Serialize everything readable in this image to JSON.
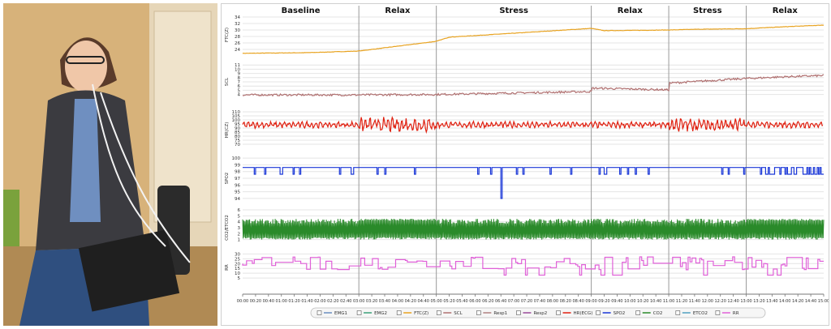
{
  "chart_data": {
    "type": "line",
    "x_unit": "mm:ss",
    "x_range": [
      "00:00",
      "15:00"
    ],
    "x_ticks": [
      "00:00",
      "00:20",
      "00:40",
      "01:00",
      "01:20",
      "01:40",
      "02:00",
      "02:20",
      "02:40",
      "03:00",
      "03:20",
      "03:40",
      "04:00",
      "04:20",
      "04:40",
      "05:00",
      "05:20",
      "05:40",
      "06:00",
      "06:20",
      "06:40",
      "07:00",
      "07:20",
      "07:40",
      "08:00",
      "08:20",
      "08:40",
      "09:00",
      "09:20",
      "09:40",
      "10:00",
      "10:20",
      "10:40",
      "11:00",
      "11:20",
      "11:40",
      "12:00",
      "12:20",
      "12:40",
      "13:00",
      "13:20",
      "13:40",
      "14:00",
      "14:20",
      "14:40",
      "15:00"
    ],
    "phases": [
      {
        "label": "Baseline",
        "start": 0,
        "end": 180
      },
      {
        "label": "Relax",
        "start": 180,
        "end": 300
      },
      {
        "label": "Stress",
        "start": 300,
        "end": 540
      },
      {
        "label": "Relax",
        "start": 540,
        "end": 660
      },
      {
        "label": "Stress",
        "start": 660,
        "end": 780
      },
      {
        "label": "Relax",
        "start": 780,
        "end": 900
      }
    ],
    "panels": [
      {
        "ylabel": "FTC(Z)",
        "ylim": [
          22,
          35
        ],
        "ticks": [
          24,
          26,
          28,
          30,
          32,
          34
        ],
        "color": "#e8a321",
        "kind": "ftc",
        "points": [
          [
            0,
            22.8
          ],
          [
            100,
            23.0
          ],
          [
            180,
            23.5
          ],
          [
            240,
            25.0
          ],
          [
            300,
            26.5
          ],
          [
            320,
            27.8
          ],
          [
            420,
            29.0
          ],
          [
            540,
            30.5
          ],
          [
            560,
            29.8
          ],
          [
            660,
            30.0
          ],
          [
            700,
            30.2
          ],
          [
            780,
            30.4
          ],
          [
            840,
            31.0
          ],
          [
            900,
            31.5
          ]
        ]
      },
      {
        "ylabel": "SCL",
        "ylim": [
          2,
          12
        ],
        "ticks": [
          4,
          5,
          6,
          7,
          8,
          9,
          10,
          11
        ],
        "color": "#b07070",
        "kind": "scl",
        "points": [
          [
            0,
            3.9
          ],
          [
            180,
            3.9
          ],
          [
            300,
            4.0
          ],
          [
            540,
            4.7
          ],
          [
            541,
            5.5
          ],
          [
            600,
            5.3
          ],
          [
            660,
            5.1
          ],
          [
            661,
            6.7
          ],
          [
            780,
            7.8
          ],
          [
            840,
            8.2
          ],
          [
            900,
            8.5
          ]
        ]
      },
      {
        "ylabel": "HR(CZ)",
        "ylim": [
          60,
          115
        ],
        "ticks": [
          70,
          75,
          80,
          85,
          90,
          95,
          100,
          105,
          110
        ],
        "color": "#e02010",
        "kind": "hr",
        "mean": 94
      },
      {
        "ylabel": "SPO2",
        "ylim": [
          93.5,
          100.5
        ],
        "ticks": [
          94,
          95,
          96,
          97,
          98,
          99,
          100
        ],
        "color": "#1a37d8",
        "kind": "spo2",
        "level": 98.6,
        "drop_at": 400,
        "drop_to": 94.0
      },
      {
        "ylabel": "CO2/ETCO2",
        "ylim": [
          0,
          6
        ],
        "ticks": [
          1,
          2,
          3,
          4,
          5,
          6
        ],
        "color": "#2a8a2a",
        "kind": "co2",
        "low": 1.0,
        "high": 4.5
      },
      {
        "ylabel": "RR",
        "ylim": [
          0,
          32
        ],
        "ticks": [
          5,
          10,
          15,
          20,
          25,
          30
        ],
        "color": "#e060d8",
        "kind": "rr",
        "mean": 20
      }
    ],
    "legend": [
      {
        "label": "EMG1",
        "color": "#6a8fc0"
      },
      {
        "label": "EMG2",
        "color": "#3aa07a"
      },
      {
        "label": "FTC(Z)",
        "color": "#e8a321"
      },
      {
        "label": "SCL",
        "color": "#b07070"
      },
      {
        "label": "Resp1",
        "color": "#b08080"
      },
      {
        "label": "Resp2",
        "color": "#9a4a9a"
      },
      {
        "label": "HR(ECG)",
        "color": "#e02010"
      },
      {
        "label": "SPO2",
        "color": "#1a37d8"
      },
      {
        "label": "CO2",
        "color": "#2a8a2a"
      },
      {
        "label": "ETCO2",
        "color": "#50a0c0"
      },
      {
        "label": "RR",
        "color": "#e060d8"
      }
    ]
  }
}
